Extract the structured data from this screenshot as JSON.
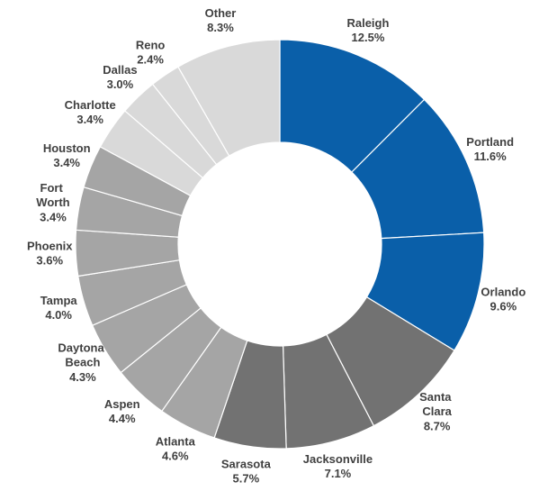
{
  "chart_data": {
    "type": "donut",
    "categories": [
      "Raleigh",
      "Portland",
      "Orlando",
      "Santa Clara",
      "Jacksonville",
      "Sarasota",
      "Atlanta",
      "Aspen",
      "Daytona Beach",
      "Tampa",
      "Phoenix",
      "Fort Worth",
      "Houston",
      "Charlotte",
      "Dallas",
      "Reno",
      "Other"
    ],
    "values": [
      12.5,
      11.6,
      9.6,
      8.7,
      7.1,
      5.7,
      4.6,
      4.4,
      4.3,
      4.0,
      3.6,
      3.4,
      3.4,
      3.4,
      3.0,
      2.4,
      8.3
    ],
    "value_labels": [
      "12.5%",
      "11.6%",
      "9.6%",
      "8.7%",
      "7.1%",
      "5.7%",
      "4.6%",
      "4.4%",
      "4.3%",
      "4.0%",
      "3.6%",
      "3.4%",
      "3.4%",
      "3.4%",
      "3.0%",
      "2.4%",
      "8.3%"
    ],
    "colors": [
      "#0a5fa9",
      "#0a5fa9",
      "#0a5fa9",
      "#727272",
      "#727272",
      "#727272",
      "#a5a5a5",
      "#a5a5a5",
      "#a5a5a5",
      "#a5a5a5",
      "#a5a5a5",
      "#a5a5a5",
      "#a5a5a5",
      "#d9d9d9",
      "#d9d9d9",
      "#d9d9d9",
      "#d9d9d9"
    ]
  }
}
